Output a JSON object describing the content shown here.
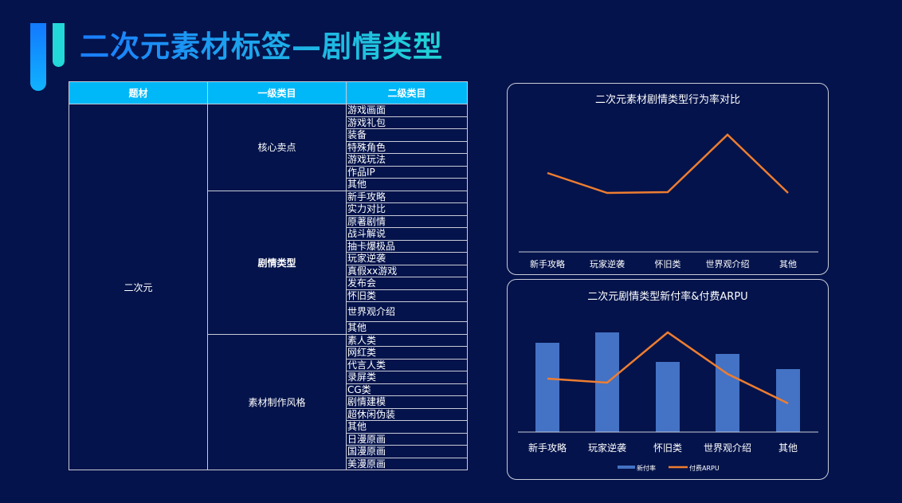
{
  "title": "二次元素材标签—剧情类型",
  "table": {
    "headers": [
      "题材",
      "一级类目",
      "二级类目"
    ],
    "topic": "二次元",
    "groups": [
      {
        "name": "核心卖点",
        "items": [
          "游戏画面",
          "游戏礼包",
          "装备",
          "特殊角色",
          "游戏玩法",
          "作品IP",
          "其他"
        ]
      },
      {
        "name": "剧情类型",
        "items": [
          "新手攻略",
          "实力对比",
          "原著剧情",
          "战斗解说",
          "抽卡爆极品",
          "玩家逆袭",
          "真假xx游戏",
          "发布会",
          "怀旧类",
          "世界观介绍",
          "其他"
        ]
      },
      {
        "name": "素材制作风格",
        "items": [
          "素人类",
          "网红类",
          "代言人类",
          "录屏类",
          "CG类",
          "剧情建模",
          "超休闲伪装",
          "其他",
          "日漫原画",
          "国漫原画",
          "美漫原画"
        ]
      }
    ]
  },
  "chart_data": [
    {
      "type": "line",
      "title": "二次元素材剧情类型行为率对比",
      "categories": [
        "新手攻略",
        "玩家逆袭",
        "怀旧类",
        "世界观介绍",
        "其他"
      ],
      "series": [
        {
          "values": [
            99,
            74,
            75,
            147,
            74
          ],
          "color": "#ed7d31"
        }
      ]
    },
    {
      "type": "bar+line",
      "title": "二次元剧情类型新付率&付费ARPU",
      "categories": [
        "新手攻略",
        "玩家逆袭",
        "怀旧类",
        "世界观介绍",
        "其他"
      ],
      "series": [
        {
          "name": "新付率",
          "type": "bar",
          "values": [
            112,
            125,
            88,
            98,
            79
          ],
          "color": "#4472c4"
        },
        {
          "name": "付费ARPU",
          "type": "line",
          "values": [
            67,
            62,
            125,
            73,
            36
          ],
          "color": "#ed7d31"
        }
      ],
      "legend": "bottom"
    }
  ]
}
